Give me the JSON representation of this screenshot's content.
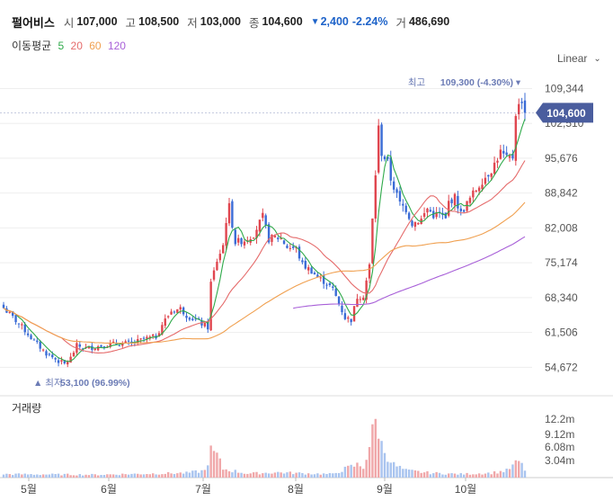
{
  "header": {
    "stock_name": "펄어비스",
    "open_label": "시",
    "open": "107,000",
    "high_label": "고",
    "high": "108,500",
    "low_label": "저",
    "low": "103,000",
    "close_label": "종",
    "close": "104,600",
    "change": "2,400",
    "change_pct": "-2.24%",
    "volume_label": "거",
    "volume": "486,690"
  },
  "moving_average": {
    "label": "이동평균",
    "periods": [
      {
        "label": "5",
        "color": "#2faa4a"
      },
      {
        "label": "20",
        "color": "#e56b6b"
      },
      {
        "label": "60",
        "color": "#f0a050"
      },
      {
        "label": "120",
        "color": "#a860d8"
      }
    ]
  },
  "scale_selector": {
    "label": "Linear"
  },
  "colors": {
    "up": "#e0464f",
    "down": "#3b6cd6",
    "up_volume": "#f0a7a9",
    "down_volume": "#a9c4ef",
    "price_tag": "#4a5d9e"
  },
  "chart_data": {
    "type": "candlestick",
    "y_ticks": [
      54672,
      61506,
      68340,
      75174,
      82008,
      88842,
      95676,
      102510,
      109344
    ],
    "y_tick_labels": [
      "54,672",
      "61,506",
      "68,340",
      "75,174",
      "82,008",
      "88,842",
      "95,676",
      "102,510",
      "109,344"
    ],
    "ylim": [
      50500,
      112600
    ],
    "x_months": [
      "5월",
      "6월",
      "7월",
      "8월",
      "9월",
      "10월"
    ],
    "current_price": 104600,
    "current_price_label": "104,600",
    "max_label": {
      "prefix": "최고",
      "value": "109,300 (-4.30%)"
    },
    "min_label": {
      "prefix": "최저",
      "value": "53,100 (96.99%)"
    },
    "volume_title": "거래량",
    "volume_ticks": [
      "12.2m",
      "9.12m",
      "6.08m",
      "3.04m"
    ],
    "grid": true,
    "anchors": [
      [
        0,
        66300
      ],
      [
        6,
        62600
      ],
      [
        10,
        59800
      ],
      [
        14,
        57400
      ],
      [
        18,
        55900
      ],
      [
        20,
        55300
      ],
      [
        22,
        56500
      ],
      [
        24,
        58900
      ],
      [
        27,
        58400
      ],
      [
        30,
        58700
      ],
      [
        34,
        59100
      ],
      [
        38,
        59400
      ],
      [
        42,
        59300
      ],
      [
        46,
        60200
      ],
      [
        50,
        60700
      ],
      [
        52,
        63100
      ],
      [
        55,
        65700
      ],
      [
        58,
        66200
      ],
      [
        60,
        64900
      ],
      [
        63,
        63900
      ],
      [
        67,
        62500
      ],
      [
        68,
        71200
      ],
      [
        70,
        75600
      ],
      [
        72,
        78600
      ],
      [
        73,
        83500
      ],
      [
        74,
        86200
      ],
      [
        76,
        79200
      ],
      [
        79,
        79600
      ],
      [
        82,
        80800
      ],
      [
        85,
        84200
      ],
      [
        87,
        79800
      ],
      [
        89,
        80200
      ],
      [
        91,
        79900
      ],
      [
        93,
        78300
      ],
      [
        96,
        77900
      ],
      [
        98,
        74800
      ],
      [
        101,
        73600
      ],
      [
        103,
        72300
      ],
      [
        106,
        71200
      ],
      [
        108,
        69900
      ],
      [
        110,
        67200
      ],
      [
        112,
        64400
      ],
      [
        114,
        64000
      ],
      [
        116,
        68500
      ],
      [
        118,
        68800
      ],
      [
        119,
        71700
      ],
      [
        120,
        74600
      ],
      [
        122,
        92600
      ],
      [
        123,
        101600
      ],
      [
        124,
        96700
      ],
      [
        126,
        94800
      ],
      [
        127,
        91600
      ],
      [
        130,
        86800
      ],
      [
        132,
        85700
      ],
      [
        134,
        82900
      ],
      [
        137,
        83700
      ],
      [
        139,
        85800
      ],
      [
        141,
        84500
      ],
      [
        143,
        84800
      ],
      [
        145,
        83600
      ],
      [
        146,
        87100
      ],
      [
        148,
        88000
      ],
      [
        150,
        84800
      ],
      [
        152,
        86800
      ],
      [
        154,
        88700
      ],
      [
        157,
        91300
      ],
      [
        160,
        93400
      ],
      [
        163,
        96900
      ],
      [
        165,
        95500
      ],
      [
        167,
        95900
      ],
      [
        168,
        104600
      ],
      [
        170,
        107200
      ],
      [
        171,
        104600
      ]
    ],
    "volume_anchors": [
      [
        0,
        0.06
      ],
      [
        30,
        0.05
      ],
      [
        60,
        0.08
      ],
      [
        66,
        0.12
      ],
      [
        68,
        0.45
      ],
      [
        70,
        0.38
      ],
      [
        72,
        0.15
      ],
      [
        80,
        0.07
      ],
      [
        90,
        0.09
      ],
      [
        100,
        0.07
      ],
      [
        108,
        0.06
      ],
      [
        112,
        0.15
      ],
      [
        116,
        0.22
      ],
      [
        118,
        0.18
      ],
      [
        120,
        0.55
      ],
      [
        122,
        0.95
      ],
      [
        123,
        0.85
      ],
      [
        124,
        0.55
      ],
      [
        126,
        0.38
      ],
      [
        128,
        0.22
      ],
      [
        132,
        0.12
      ],
      [
        140,
        0.08
      ],
      [
        150,
        0.06
      ],
      [
        160,
        0.08
      ],
      [
        165,
        0.12
      ],
      [
        167,
        0.2
      ],
      [
        169,
        0.28
      ],
      [
        171,
        0.14
      ]
    ],
    "moving_averages": [
      {
        "period": 5,
        "start": 0
      },
      {
        "period": 20,
        "start": 0
      },
      {
        "period": 60,
        "start": 0
      },
      {
        "period": 120,
        "start": 95
      }
    ]
  }
}
